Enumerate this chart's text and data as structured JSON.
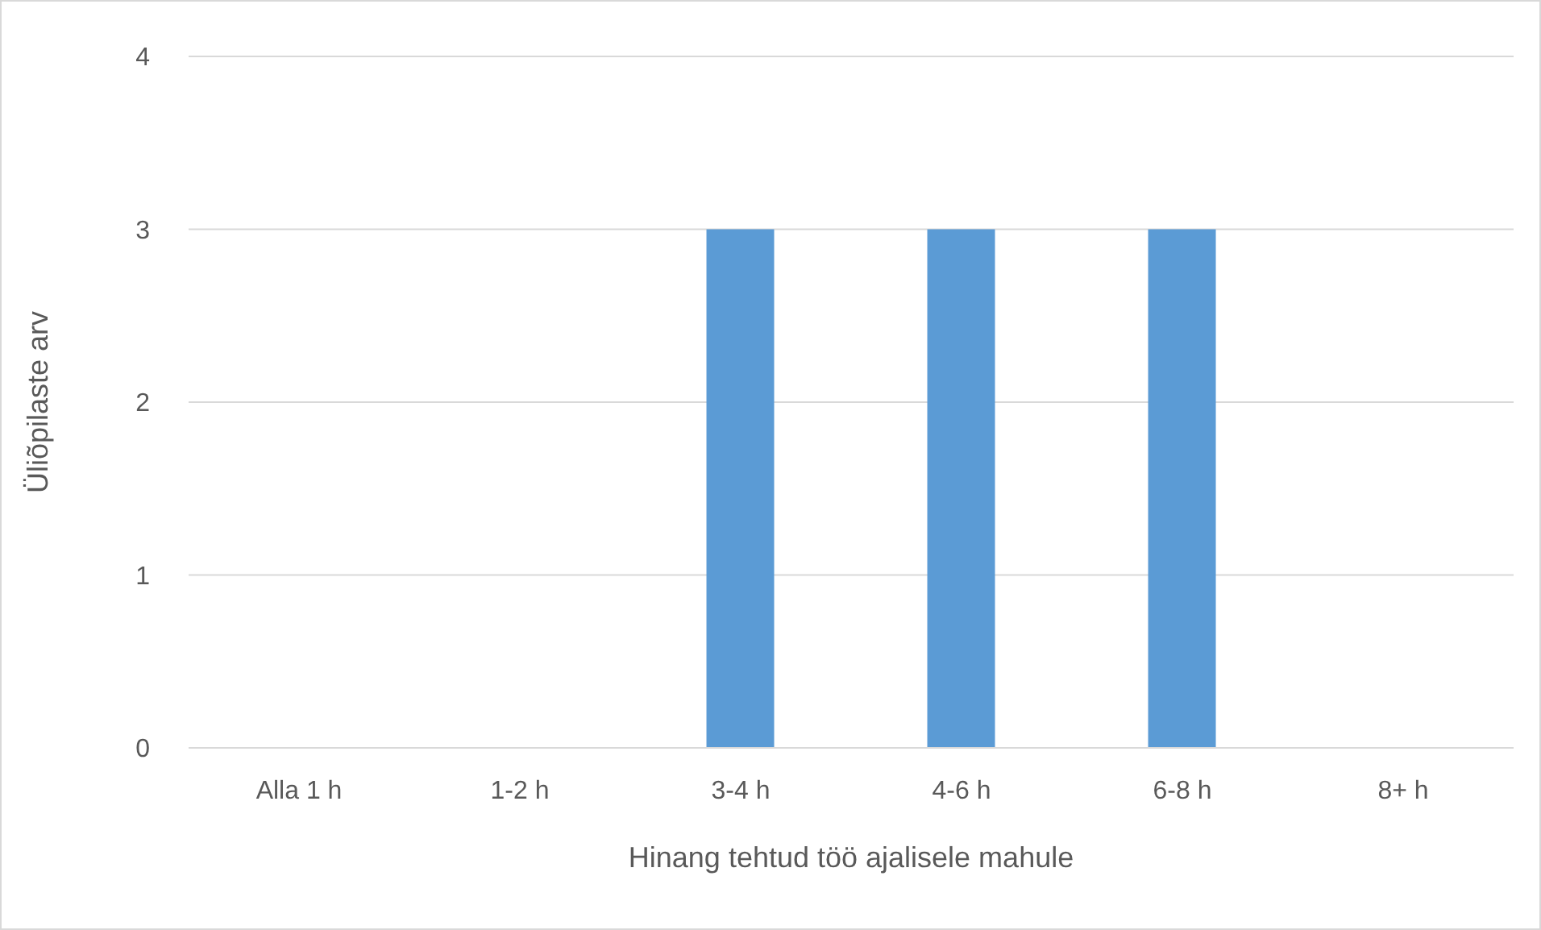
{
  "chart_data": {
    "type": "bar",
    "xlabel": "Hinang tehtud töö ajalisele mahule",
    "ylabel": "Üliõpilaste arv",
    "categories": [
      "Alla 1 h",
      "1-2 h",
      "3-4 h",
      "4-6 h",
      "6-8 h",
      "8+ h"
    ],
    "values": [
      0,
      0,
      3,
      3,
      3,
      0
    ],
    "color": "#5b9bd5",
    "ylim": [
      0,
      4
    ],
    "yticks": [
      0,
      1,
      2,
      3,
      4
    ],
    "grid": "y"
  }
}
